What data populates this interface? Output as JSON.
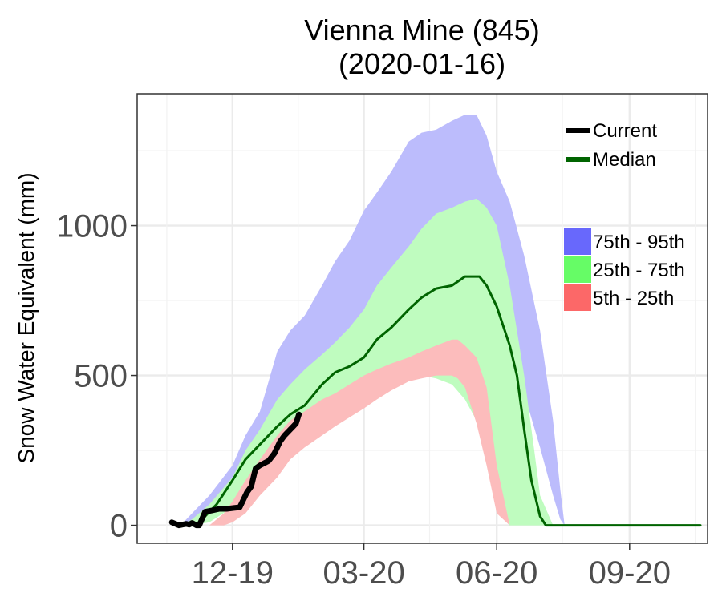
{
  "chart_data": {
    "type": "area",
    "title_line1": "Vienna Mine (845)",
    "title_line2": "(2020-01-16)",
    "ylabel": "Snow Water Equivalent (mm)",
    "xlabel": "",
    "ylim": [
      -60,
      1440
    ],
    "xlim": [
      "2019-09-26",
      "2020-10-25"
    ],
    "x_ticks": [
      {
        "date": "2019-12-01",
        "label": "12-19"
      },
      {
        "date": "2020-03-01",
        "label": "03-20"
      },
      {
        "date": "2020-06-01",
        "label": "06-20"
      },
      {
        "date": "2020-09-01",
        "label": "09-20"
      }
    ],
    "y_ticks": [
      {
        "value": 0,
        "label": "0"
      },
      {
        "value": 500,
        "label": "500"
      },
      {
        "value": 1000,
        "label": "1000"
      }
    ],
    "grid": true,
    "legend_position": "top-right",
    "colors": {
      "band_75_95": "#bcbcfc",
      "band_25_75": "#bffcbf",
      "band_5_25": "#fcbcbc",
      "key_75_95": "#6868fc",
      "key_25_75": "#66fc66",
      "key_5_25": "#fc6868",
      "current": "#000000",
      "median": "#006400"
    },
    "legend_lines": [
      {
        "name": "Current",
        "color": "#000000"
      },
      {
        "name": "Median",
        "color": "#006400"
      }
    ],
    "legend_bands": [
      {
        "name": "75th - 95th",
        "color": "#6868fc"
      },
      {
        "name": "25th - 75th",
        "color": "#66fc66"
      },
      {
        "name": "5th - 25th",
        "color": "#fc6868"
      }
    ],
    "bands": [
      {
        "name": "75th - 95th",
        "x": [
          "2019-10-26",
          "2019-11-03",
          "2019-11-15",
          "2019-12-01",
          "2019-12-10",
          "2019-12-20",
          "2020-01-01",
          "2020-01-10",
          "2020-01-20",
          "2020-02-01",
          "2020-02-10",
          "2020-02-20",
          "2020-03-01",
          "2020-03-10",
          "2020-03-20",
          "2020-04-01",
          "2020-04-10",
          "2020-04-20",
          "2020-05-01",
          "2020-05-10",
          "2020-05-18",
          "2020-05-25",
          "2020-06-01",
          "2020-06-10",
          "2020-06-20",
          "2020-07-01",
          "2020-07-10",
          "2020-07-15",
          "2020-07-18",
          "2020-10-20"
        ],
        "lower": [
          0,
          0,
          20,
          90,
          150,
          200,
          300,
          360,
          400,
          430,
          460,
          490,
          530,
          560,
          600,
          640,
          680,
          720,
          750,
          790,
          820,
          830,
          760,
          620,
          440,
          260,
          100,
          20,
          0,
          0
        ],
        "upper": [
          0,
          40,
          100,
          200,
          300,
          380,
          580,
          650,
          700,
          800,
          880,
          950,
          1050,
          1110,
          1180,
          1280,
          1310,
          1320,
          1350,
          1370,
          1370,
          1300,
          1180,
          1080,
          900,
          650,
          350,
          120,
          0,
          0
        ]
      },
      {
        "name": "25th - 75th",
        "x": [
          "2019-10-26",
          "2019-11-03",
          "2019-11-15",
          "2019-12-01",
          "2019-12-10",
          "2019-12-20",
          "2020-01-01",
          "2020-01-10",
          "2020-01-20",
          "2020-02-01",
          "2020-02-10",
          "2020-02-20",
          "2020-03-01",
          "2020-03-10",
          "2020-03-20",
          "2020-04-01",
          "2020-04-10",
          "2020-04-20",
          "2020-05-01",
          "2020-05-10",
          "2020-05-18",
          "2020-05-25",
          "2020-06-01",
          "2020-06-10",
          "2020-06-20",
          "2020-06-27",
          "2020-07-01",
          "2020-07-10",
          "2020-10-20"
        ],
        "lower": [
          0,
          0,
          10,
          60,
          110,
          180,
          250,
          300,
          340,
          370,
          400,
          430,
          470,
          490,
          500,
          500,
          500,
          490,
          470,
          420,
          350,
          250,
          60,
          0,
          0,
          0,
          0,
          0,
          0
        ],
        "upper": [
          0,
          20,
          70,
          160,
          250,
          320,
          420,
          470,
          520,
          570,
          610,
          660,
          720,
          800,
          860,
          930,
          990,
          1040,
          1060,
          1080,
          1090,
          1060,
          1000,
          800,
          500,
          250,
          100,
          0,
          0
        ]
      },
      {
        "name": "5th - 25th",
        "x": [
          "2019-10-26",
          "2019-11-03",
          "2019-11-15",
          "2019-11-25",
          "2019-12-01",
          "2019-12-10",
          "2019-12-20",
          "2020-01-01",
          "2020-01-10",
          "2020-01-20",
          "2020-02-01",
          "2020-02-10",
          "2020-02-20",
          "2020-03-01",
          "2020-03-10",
          "2020-03-20",
          "2020-04-01",
          "2020-04-10",
          "2020-04-20",
          "2020-05-01",
          "2020-05-05",
          "2020-05-10",
          "2020-05-18",
          "2020-05-25",
          "2020-06-01",
          "2020-06-10",
          "2020-06-20",
          "2020-10-20"
        ],
        "lower": [
          0,
          0,
          0,
          0,
          10,
          40,
          100,
          160,
          220,
          260,
          300,
          330,
          360,
          390,
          420,
          450,
          480,
          490,
          500,
          500,
          490,
          460,
          340,
          200,
          40,
          0,
          0,
          0
        ],
        "upper": [
          0,
          0,
          0,
          40,
          80,
          150,
          220,
          300,
          350,
          380,
          420,
          440,
          470,
          500,
          520,
          540,
          560,
          580,
          600,
          620,
          620,
          600,
          560,
          460,
          200,
          0,
          0,
          0
        ]
      }
    ],
    "series": [
      {
        "name": "Median",
        "x": [
          "2019-10-26",
          "2019-11-05",
          "2019-11-10",
          "2019-11-20",
          "2019-12-01",
          "2019-12-10",
          "2019-12-20",
          "2020-01-01",
          "2020-01-10",
          "2020-01-20",
          "2020-02-01",
          "2020-02-10",
          "2020-02-20",
          "2020-03-01",
          "2020-03-10",
          "2020-03-20",
          "2020-04-01",
          "2020-04-10",
          "2020-04-20",
          "2020-05-01",
          "2020-05-10",
          "2020-05-20",
          "2020-05-25",
          "2020-06-01",
          "2020-06-10",
          "2020-06-15",
          "2020-06-20",
          "2020-06-25",
          "2020-07-01",
          "2020-07-05",
          "2020-10-20"
        ],
        "y": [
          0,
          0,
          20,
          70,
          150,
          220,
          270,
          330,
          370,
          400,
          470,
          510,
          530,
          560,
          620,
          660,
          720,
          760,
          790,
          800,
          830,
          830,
          800,
          730,
          600,
          500,
          320,
          150,
          30,
          0,
          0
        ]
      },
      {
        "name": "Current",
        "x": [
          "2019-10-20",
          "2019-10-25",
          "2019-10-30",
          "2019-11-01",
          "2019-11-03",
          "2019-11-06",
          "2019-11-08",
          "2019-11-12",
          "2019-11-17",
          "2019-11-22",
          "2019-11-27",
          "2019-12-02",
          "2019-12-06",
          "2019-12-08",
          "2019-12-11",
          "2019-12-14",
          "2019-12-17",
          "2019-12-20",
          "2019-12-24",
          "2019-12-26",
          "2019-12-30",
          "2020-01-03",
          "2020-01-06",
          "2020-01-10",
          "2020-01-14",
          "2020-01-16"
        ],
        "y": [
          10,
          0,
          5,
          2,
          8,
          0,
          0,
          45,
          50,
          55,
          55,
          58,
          60,
          80,
          110,
          130,
          190,
          200,
          210,
          215,
          240,
          280,
          300,
          320,
          340,
          370
        ]
      }
    ]
  }
}
